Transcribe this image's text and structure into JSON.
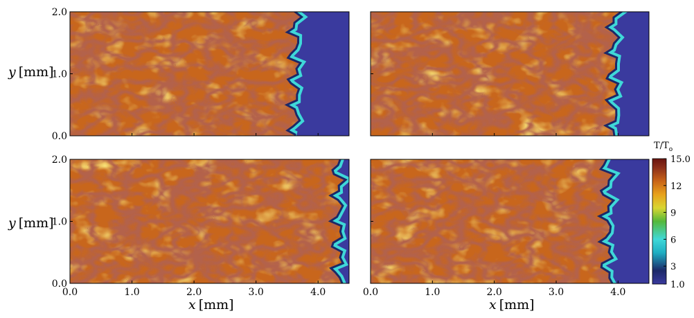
{
  "chart_data": {
    "type": "heatmap",
    "colorbar": {
      "title": "T/T",
      "title_subscript": "o",
      "range": [
        1.0,
        15.0
      ],
      "ticks": [
        {
          "value": 15.0,
          "label": "15.0"
        },
        {
          "value": 12,
          "label": "12"
        },
        {
          "value": 9,
          "label": "9"
        },
        {
          "value": 6,
          "label": "6"
        },
        {
          "value": 3,
          "label": "3"
        },
        {
          "value": 1.0,
          "label": "1.0"
        }
      ],
      "colors": {
        "1.0": "#3a3a9e",
        "2.5": "#1c2868",
        "4.5": "#1faec2",
        "6.0": "#3fd8d8",
        "8.0": "#54b83a",
        "9.5": "#d9d632",
        "11.0": "#e8a21c",
        "12.5": "#c86418",
        "14.0": "#8c2f1a",
        "15.0": "#6a1410"
      }
    },
    "panels": [
      {
        "position": "top-left",
        "front_x_mm": 3.6,
        "xlim": [
          0,
          4.5
        ],
        "ylim": [
          0,
          2.0
        ]
      },
      {
        "position": "top-right",
        "front_x_mm": 3.9,
        "xlim": [
          0,
          4.5
        ],
        "ylim": [
          0,
          2.0
        ]
      },
      {
        "position": "bottom-left",
        "front_x_mm": 4.3,
        "xlim": [
          0,
          4.5
        ],
        "ylim": [
          0,
          2.0
        ]
      },
      {
        "position": "bottom-right",
        "front_x_mm": 3.8,
        "xlim": [
          0,
          4.5
        ],
        "ylim": [
          0,
          2.0
        ]
      }
    ],
    "x_ticks": [
      "0.0",
      "1.0",
      "2.0",
      "3.0",
      "4.0"
    ],
    "x_tick_values": [
      0,
      1,
      2,
      3,
      4
    ],
    "y_ticks": [
      "0.0",
      "1.0",
      "2.0"
    ],
    "y_tick_values": [
      0,
      1,
      2
    ],
    "xlabel": "x",
    "xlabel_unit": "[mm]",
    "ylabel": "y",
    "ylabel_unit": "[mm]",
    "colors": {
      "burned_base": "#c8661c",
      "burned_dark": "#7c2416",
      "burned_light": "#e9ad28",
      "unburned": "#3a3a9e",
      "flame_edge": "#3fd8d8"
    }
  }
}
